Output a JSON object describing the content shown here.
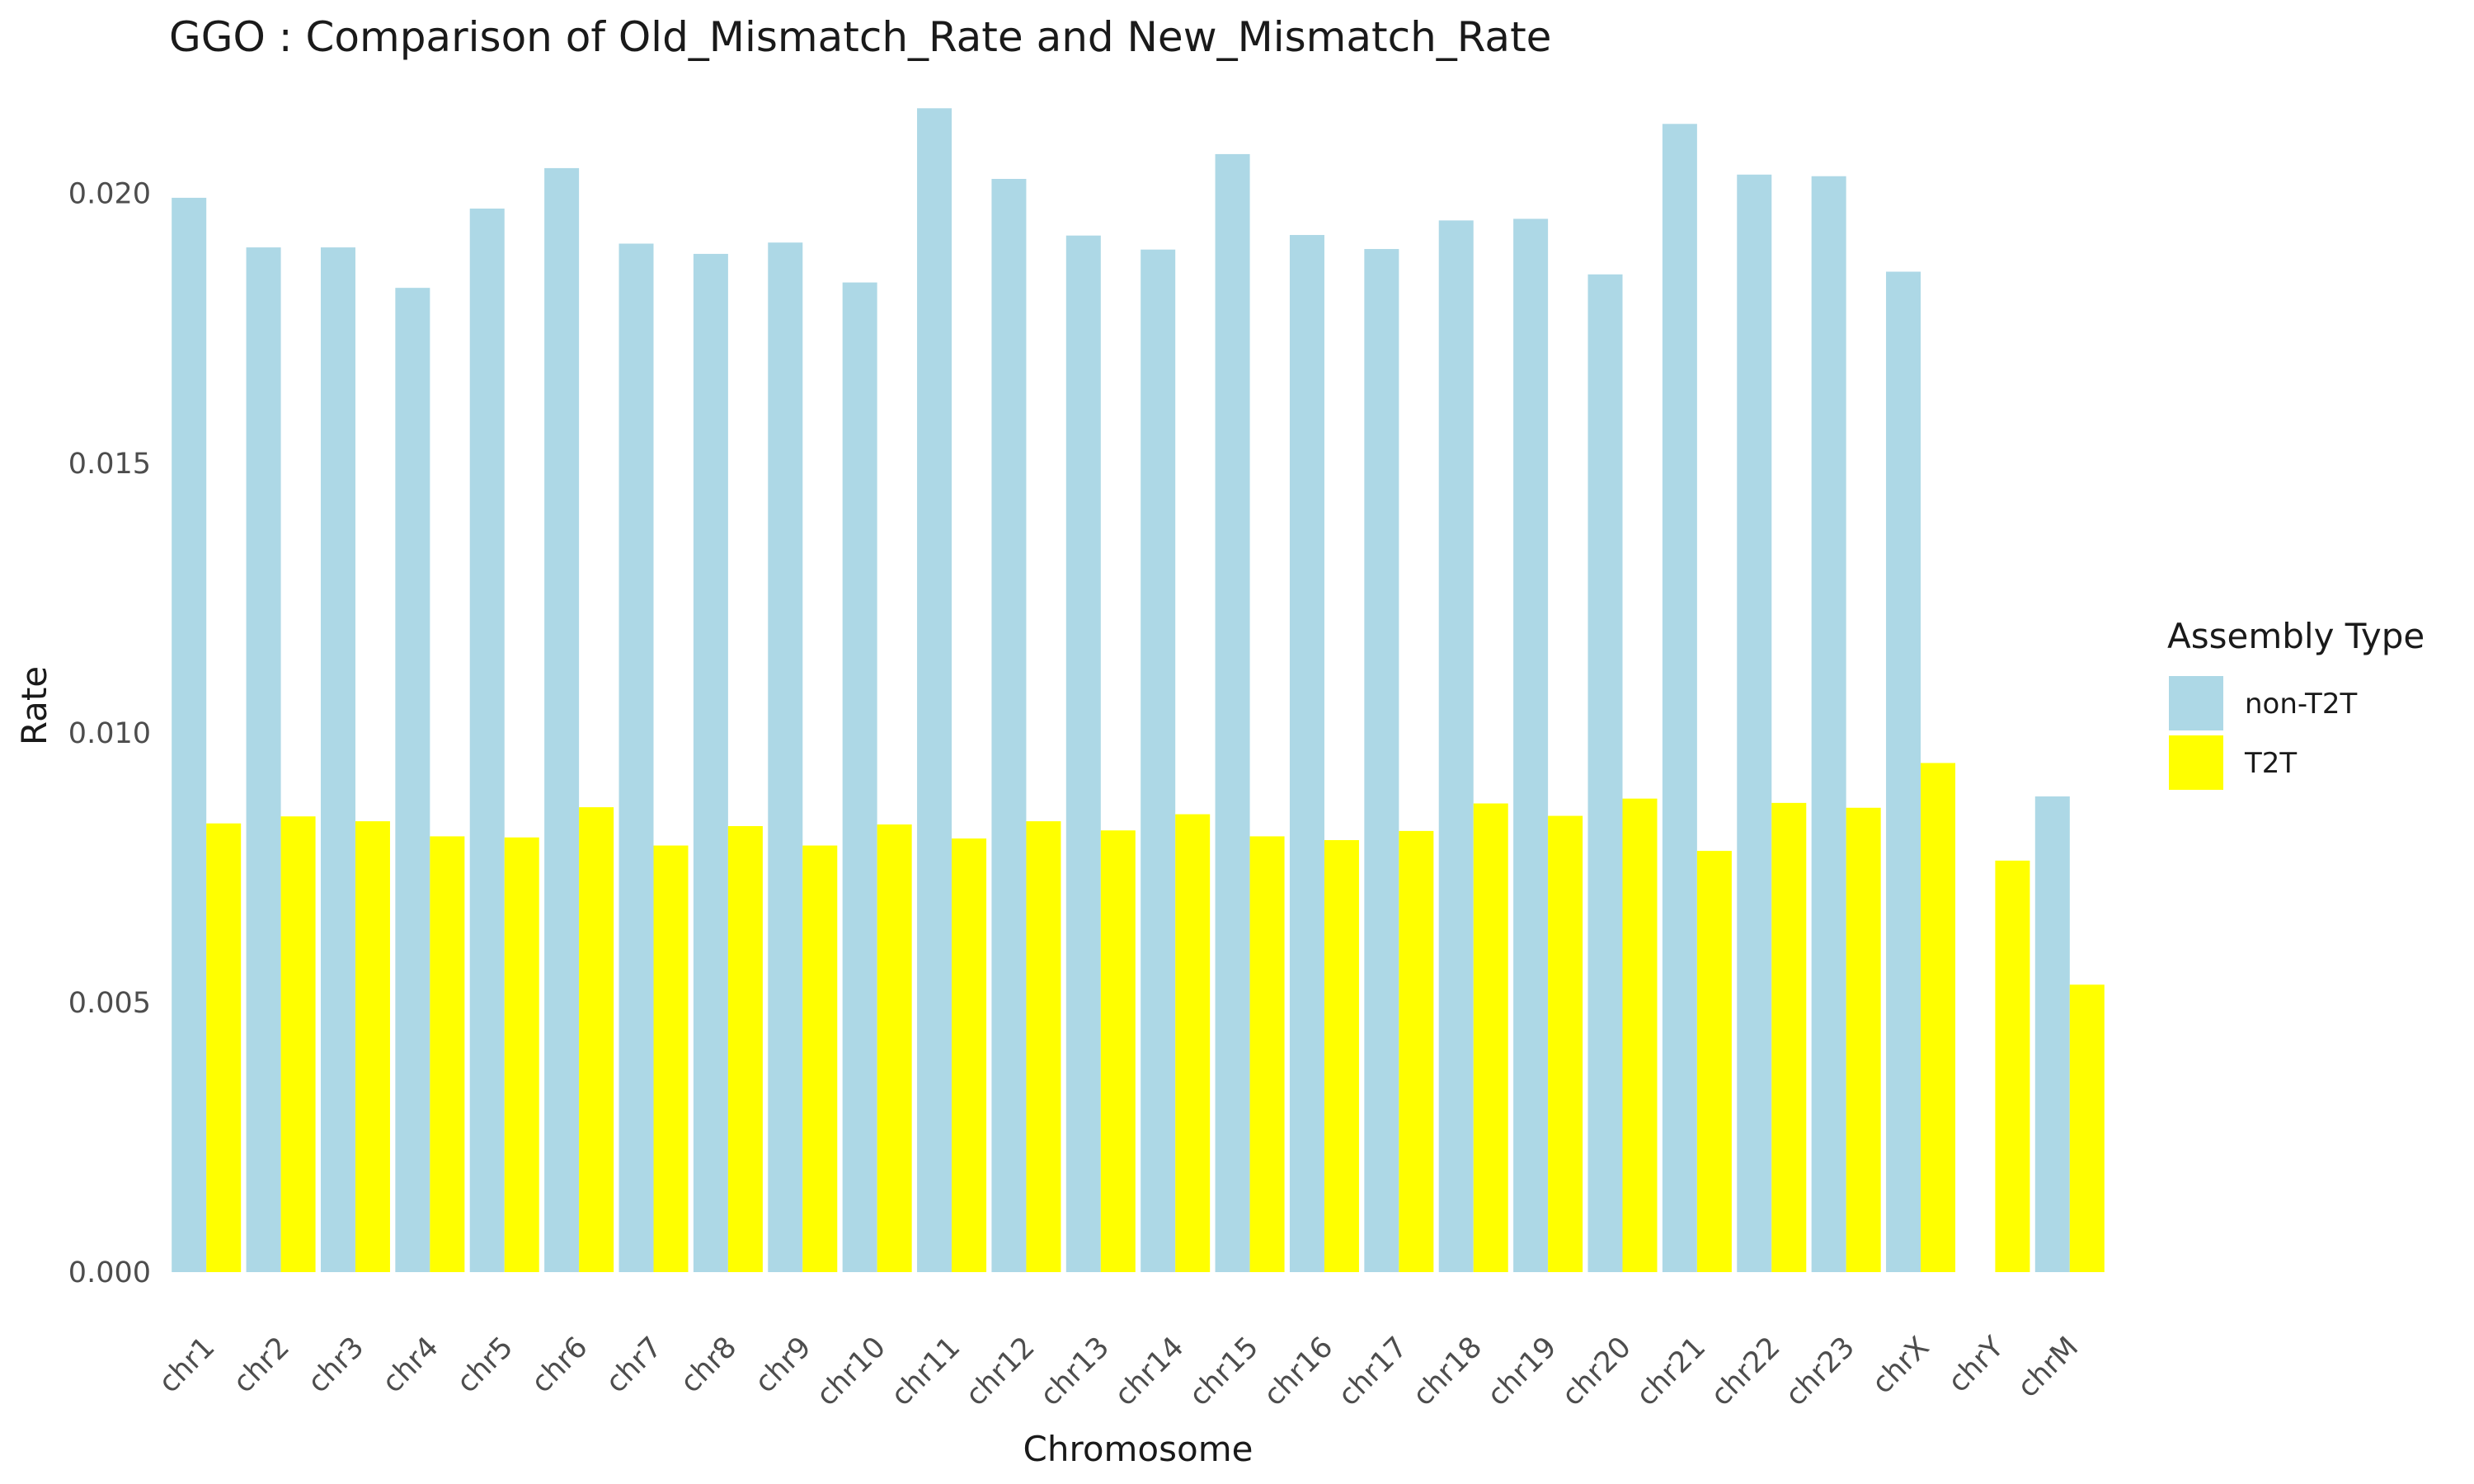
{
  "chart_data": {
    "type": "bar",
    "title": "GGO : Comparison of Old_Mismatch_Rate and New_Mismatch_Rate",
    "xlabel": "Chromosome",
    "ylabel": "Rate",
    "ylim": [
      0,
      0.0216
    ],
    "yticks": [
      "0.000",
      "0.005",
      "0.010",
      "0.015",
      "0.020"
    ],
    "grid": false,
    "legend": {
      "title": "Assembly Type",
      "position": "right"
    },
    "categories": [
      "chr1",
      "chr2",
      "chr3",
      "chr4",
      "chr5",
      "chr6",
      "chr7",
      "chr8",
      "chr9",
      "chr10",
      "chr11",
      "chr12",
      "chr13",
      "chr14",
      "chr15",
      "chr16",
      "chr17",
      "chr18",
      "chr19",
      "chr20",
      "chr21",
      "chr22",
      "chr23",
      "chrX",
      "chrY",
      "chrM"
    ],
    "series": [
      {
        "name": "non-T2T",
        "color": "#ADD8E6",
        "values": [
          0.01992,
          0.019,
          0.019,
          0.01825,
          0.01972,
          0.02047,
          0.01907,
          0.01888,
          0.01909,
          0.01835,
          0.02158,
          0.02027,
          0.01922,
          0.01896,
          0.02073,
          0.01923,
          0.01897,
          0.0195,
          0.01953,
          0.0185,
          0.02129,
          0.02035,
          0.02032,
          0.01855,
          null,
          0.00882
        ]
      },
      {
        "name": "T2T",
        "color": "#FFFF00",
        "values": [
          0.00832,
          0.00845,
          0.00836,
          0.00808,
          0.00806,
          0.00862,
          0.00791,
          0.00827,
          0.00791,
          0.0083,
          0.00804,
          0.00836,
          0.00819,
          0.00849,
          0.00808,
          0.00801,
          0.00818,
          0.00869,
          0.00846,
          0.00878,
          0.00781,
          0.0087,
          0.00861,
          0.00944,
          0.00763,
          0.00533
        ]
      }
    ]
  }
}
